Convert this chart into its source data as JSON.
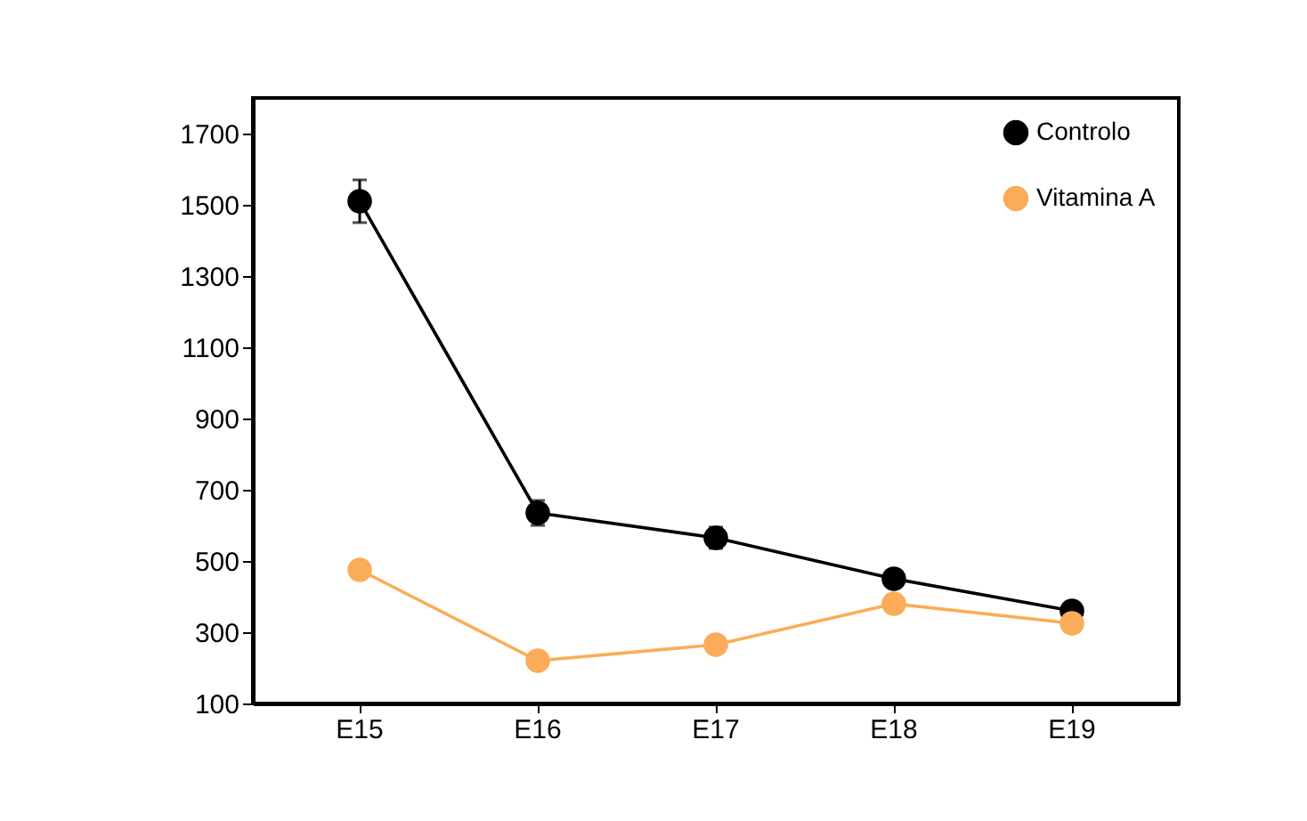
{
  "chart_data": {
    "type": "line",
    "categories": [
      "E15",
      "E16",
      "E17",
      "E18",
      "E19"
    ],
    "series": [
      {
        "name": "Controlo",
        "color": "#000000",
        "values": [
          1510,
          635,
          565,
          450,
          360
        ],
        "errors": [
          60,
          35,
          30,
          null,
          null
        ]
      },
      {
        "name": "Vitamina A",
        "color": "#fbac58",
        "values": [
          475,
          220,
          265,
          380,
          325
        ]
      }
    ],
    "ylim": [
      100,
      1800
    ],
    "yticks": [
      100,
      300,
      500,
      700,
      900,
      1100,
      1300,
      1500,
      1700
    ],
    "grid": false,
    "legend": "top right",
    "marker": "circle",
    "line_style": "solid"
  }
}
